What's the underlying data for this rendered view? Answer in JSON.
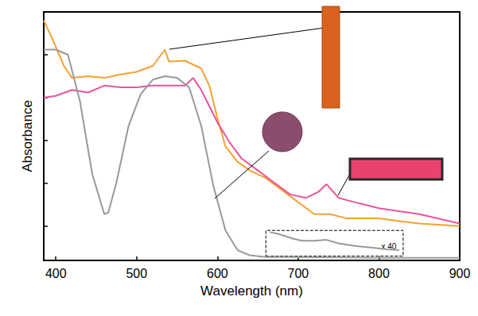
{
  "chart_data": {
    "type": "line",
    "x_label": "Wavelength (nm)",
    "y_label": "Absorbance",
    "xlim": [
      385,
      900
    ],
    "xticks": [
      400,
      500,
      600,
      700,
      800,
      900
    ],
    "ylim": [
      -0.4,
      2.5
    ],
    "yticks": [
      0,
      0.5,
      1,
      1.5,
      2
    ],
    "tick_labels": "x",
    "grid": false,
    "series": [
      {
        "color": "#f5a033",
        "x": [
          385,
          395,
          410,
          420,
          440,
          460,
          480,
          500,
          520,
          535,
          540,
          560,
          580,
          590,
          600,
          610,
          625,
          640,
          660,
          680,
          700,
          720,
          740,
          760,
          800,
          850,
          900
        ],
        "values": [
          2.4,
          2.2,
          1.87,
          1.73,
          1.75,
          1.73,
          1.77,
          1.8,
          1.87,
          2.06,
          1.92,
          1.93,
          1.84,
          1.64,
          1.26,
          0.93,
          0.75,
          0.65,
          0.56,
          0.42,
          0.28,
          0.14,
          0.14,
          0.09,
          0.09,
          0.03,
          0.0
        ]
      },
      {
        "color": "#e8559a",
        "x": [
          385,
          400,
          420,
          440,
          460,
          480,
          500,
          520,
          540,
          560,
          570,
          580,
          590,
          600,
          615,
          630,
          650,
          670,
          690,
          710,
          725,
          735,
          750,
          770,
          800,
          850,
          900
        ],
        "values": [
          1.5,
          1.52,
          1.59,
          1.56,
          1.64,
          1.62,
          1.62,
          1.64,
          1.64,
          1.64,
          1.73,
          1.59,
          1.4,
          1.21,
          0.98,
          0.79,
          0.65,
          0.51,
          0.37,
          0.33,
          0.4,
          0.49,
          0.33,
          0.28,
          0.21,
          0.14,
          0.03
        ]
      },
      {
        "color": "#999999",
        "x": [
          385,
          400,
          415,
          430,
          445,
          460,
          465,
          475,
          490,
          505,
          520,
          535,
          550,
          565,
          580,
          595,
          610,
          625,
          640,
          660,
          700,
          800,
          900
        ],
        "values": [
          2.06,
          2.06,
          2.0,
          1.45,
          0.61,
          0.14,
          0.16,
          0.51,
          1.17,
          1.54,
          1.71,
          1.75,
          1.73,
          1.62,
          1.17,
          0.47,
          -0.05,
          -0.28,
          -0.34,
          -0.36,
          -0.36,
          -0.37,
          -0.37
        ]
      },
      {
        "color": "#999999",
        "x": [
          665,
          675,
          685,
          695,
          705,
          720,
          735,
          750,
          770,
          790,
          810,
          825
        ],
        "values": [
          -0.07,
          -0.09,
          -0.12,
          -0.15,
          -0.17,
          -0.17,
          -0.16,
          -0.2,
          -0.23,
          -0.25,
          -0.27,
          -0.28
        ]
      }
    ],
    "annotations": [
      {
        "text": "x 40",
        "box": {
          "x": [
            660,
            830
          ],
          "y": [
            -0.35,
            -0.05
          ]
        }
      }
    ]
  }
}
